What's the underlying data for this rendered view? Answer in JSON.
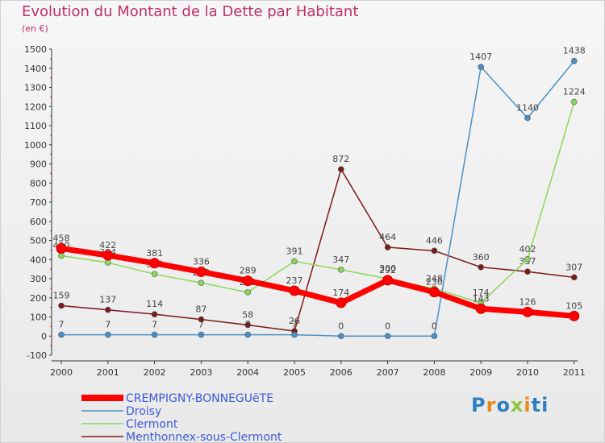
{
  "header": {
    "title": "Evolution du Montant de la Dette par Habitant",
    "unit": "(en €)"
  },
  "logo_text": "Proxiti",
  "colors": {
    "title": "#c0306a",
    "axis": "#333333",
    "legend_text": "#3b5bdb"
  },
  "chart_data": {
    "type": "line",
    "title": "Evolution du Montant de la Dette par Habitant",
    "ylabel": "(en €)",
    "xlabel": "",
    "x": [
      "2000",
      "2001",
      "2002",
      "2003",
      "2004",
      "2005",
      "2006",
      "2007",
      "2008",
      "2009",
      "2010",
      "2011"
    ],
    "ylim": [
      -100,
      1500
    ],
    "yticks": [
      -100,
      0,
      100,
      200,
      300,
      400,
      500,
      600,
      700,
      800,
      900,
      1000,
      1100,
      1200,
      1300,
      1400,
      1500
    ],
    "grid": false,
    "legend_position": "bottom-left",
    "series": [
      {
        "name": "Menthonnex-sous-Clermont",
        "color": "#7a1a1a",
        "values": [
          159,
          137,
          114,
          87,
          58,
          26,
          872,
          464,
          446,
          360,
          337,
          307
        ]
      },
      {
        "name": "Clermont",
        "color": "#8cd65a",
        "values": [
          420,
          384,
          324,
          278,
          229,
          391,
          347,
          300,
          248,
          174,
          402,
          1224
        ]
      },
      {
        "name": "Droisy",
        "color": "#4a90c8",
        "values": [
          7,
          7,
          7,
          7,
          7,
          7,
          0,
          0,
          0,
          1407,
          1140,
          1438
        ]
      },
      {
        "name": "CREMPIGNY-BONNEGUëTE",
        "color": "#ff0000",
        "values": [
          458,
          422,
          381,
          336,
          289,
          237,
          174,
          292,
          230,
          143,
          126,
          105
        ]
      }
    ]
  }
}
